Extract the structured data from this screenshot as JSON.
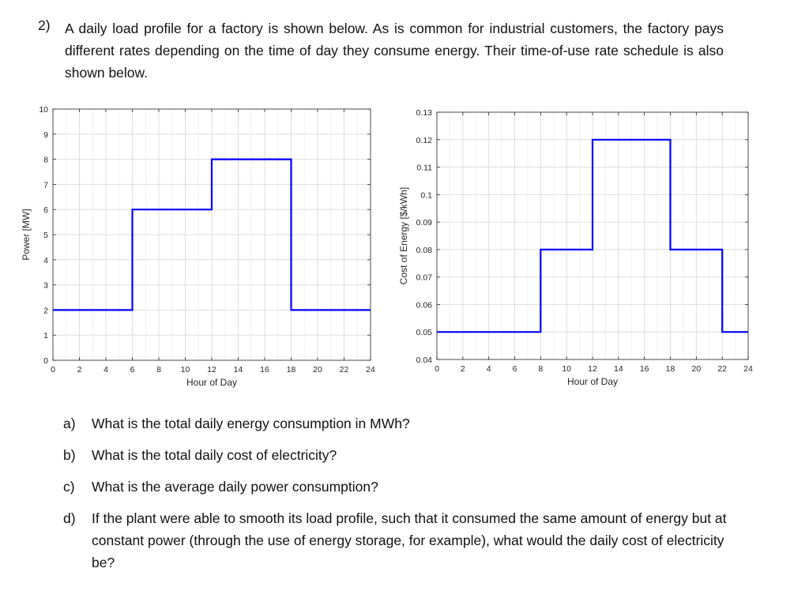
{
  "problem": {
    "number": "2)",
    "intro": "A daily load profile for a factory is shown below. As is common for industrial customers, the factory pays different rates depending on the time of day they consume energy. Their time-of-use rate schedule is also shown below."
  },
  "chart_data": [
    {
      "type": "line",
      "step": true,
      "xlabel": "Hour of Day",
      "ylabel": "Power  [MW]",
      "xlim": [
        0,
        24
      ],
      "ylim": [
        0,
        10
      ],
      "x_ticks": [
        0,
        2,
        4,
        6,
        8,
        10,
        12,
        14,
        16,
        18,
        20,
        22,
        24
      ],
      "y_ticks": [
        0,
        1,
        2,
        3,
        4,
        5,
        6,
        7,
        8,
        9,
        10
      ],
      "x_tick_labels": [
        "0",
        "2",
        "4",
        "6",
        "8",
        "10",
        "12",
        "14",
        "16",
        "18",
        "20",
        "22",
        "24"
      ],
      "y_tick_labels": [
        "0",
        "1",
        "2",
        "3",
        "4",
        "5",
        "6",
        "7",
        "8",
        "9",
        "10"
      ],
      "grid": true,
      "color": "#0000ff",
      "series": [
        {
          "x": [
            0,
            6,
            6,
            12,
            12,
            18,
            18,
            24
          ],
          "y": [
            2,
            2,
            6,
            6,
            8,
            8,
            2,
            2
          ]
        }
      ]
    },
    {
      "type": "line",
      "step": true,
      "xlabel": "Hour of Day",
      "ylabel": "Cost of Energy  [$/kWh]",
      "xlim": [
        0,
        24
      ],
      "ylim": [
        0.04,
        0.13
      ],
      "x_ticks": [
        0,
        2,
        4,
        6,
        8,
        10,
        12,
        14,
        16,
        18,
        20,
        22,
        24
      ],
      "y_ticks": [
        0.04,
        0.05,
        0.06,
        0.07,
        0.08,
        0.09,
        0.1,
        0.11,
        0.12,
        0.13
      ],
      "x_tick_labels": [
        "0",
        "2",
        "4",
        "6",
        "8",
        "10",
        "12",
        "14",
        "16",
        "18",
        "20",
        "22",
        "24"
      ],
      "y_tick_labels": [
        "0.04",
        "0.05",
        "0.06",
        "0.07",
        "0.08",
        "0.09",
        "0.1",
        "0.11",
        "0.12",
        "0.13"
      ],
      "grid": true,
      "color": "#0000ff",
      "series": [
        {
          "x": [
            0,
            8,
            8,
            12,
            12,
            18,
            18,
            22,
            22,
            24
          ],
          "y": [
            0.05,
            0.05,
            0.08,
            0.08,
            0.12,
            0.12,
            0.08,
            0.08,
            0.05,
            0.05
          ]
        }
      ]
    }
  ],
  "questions": [
    {
      "label": "a)",
      "text": "What is the total daily energy consumption in MWh?"
    },
    {
      "label": "b)",
      "text": "What is the total daily cost of electricity?"
    },
    {
      "label": "c)",
      "text": "What is the average daily power consumption?"
    },
    {
      "label": "d)",
      "text": "If the plant were able to smooth its load profile, such that it consumed the same amount of energy but at constant power (through the use of energy storage, for example), what would the daily cost of electricity be?"
    }
  ]
}
